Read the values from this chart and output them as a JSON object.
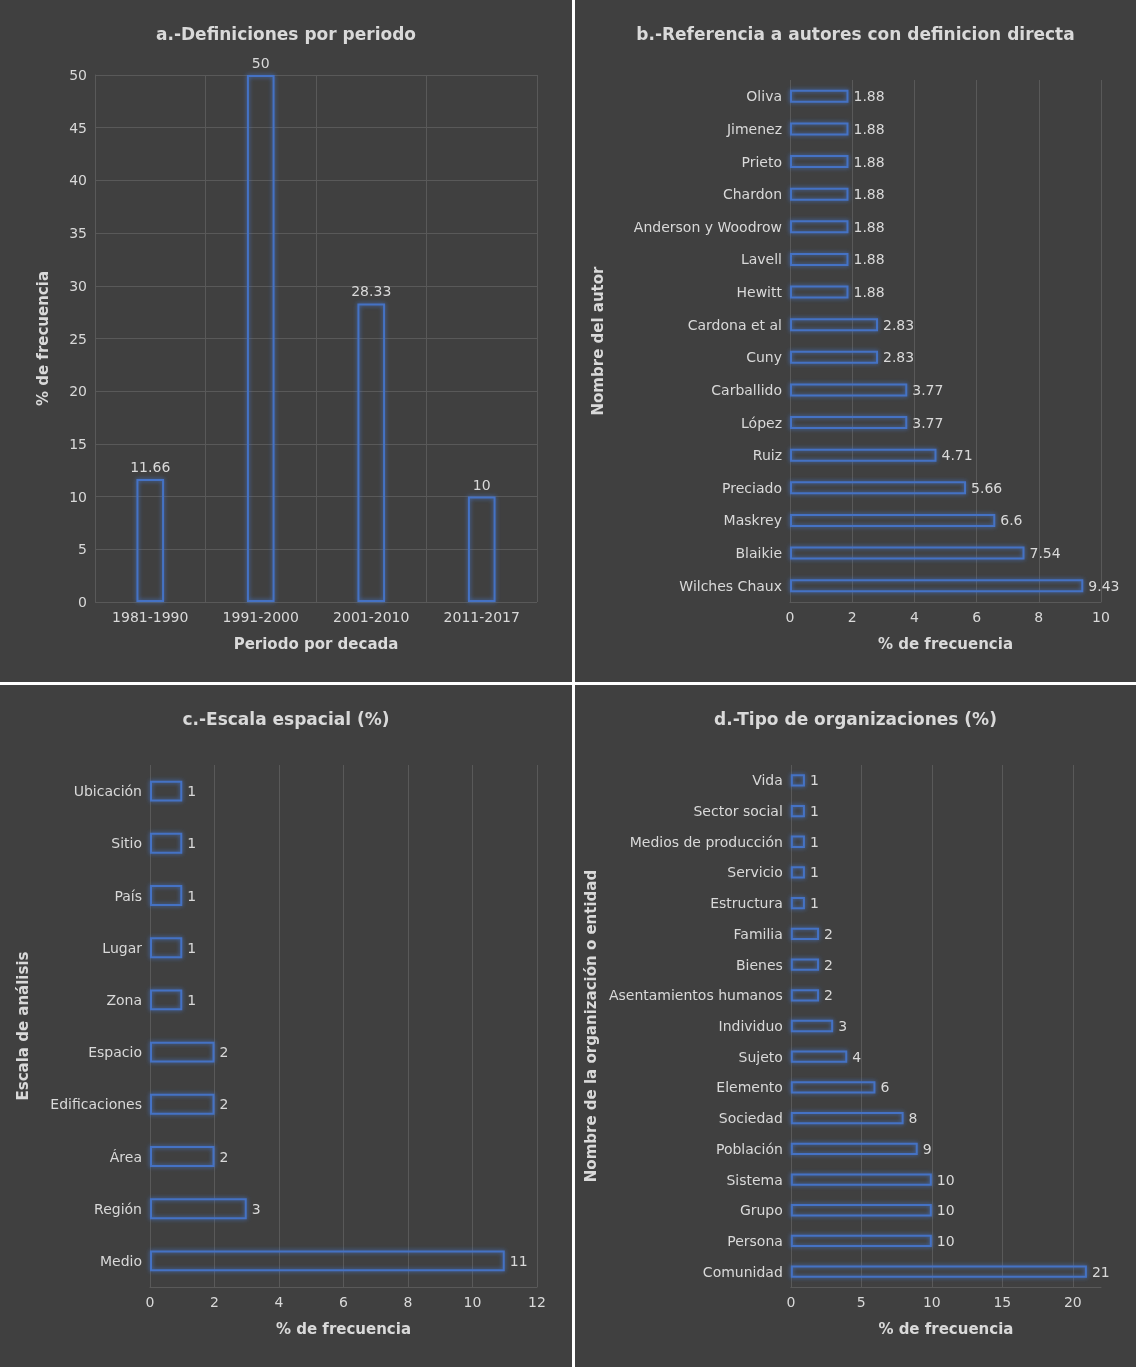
{
  "chart_data": [
    {
      "type": "bar",
      "title": "a.-Definiciones por periodo",
      "xlabel": "Periodo por decada",
      "ylabel": "% de frecuencia",
      "categories": [
        "1981-1990",
        "1991-2000",
        "2001-2010",
        "2011-2017"
      ],
      "values": [
        11.66,
        50,
        28.33,
        10
      ],
      "color": "#4472c4",
      "ylim": [
        0,
        50
      ],
      "yticks": [
        0,
        5,
        10,
        15,
        20,
        25,
        30,
        35,
        40,
        45,
        50
      ],
      "grid": true,
      "data_labels": true
    },
    {
      "type": "bar",
      "orientation": "horizontal",
      "title": "b.-Referencia a autores con definicion directa",
      "xlabel": "% de frecuencia",
      "ylabel": "Nombre del autor",
      "categories": [
        "Oliva",
        "Jimenez",
        "Prieto",
        "Chardon",
        "Anderson y Woodrow",
        "Lavell",
        "Hewitt",
        "Cardona et al",
        "Cuny",
        "Carballido",
        "López",
        "Ruiz",
        "Preciado",
        "Maskrey",
        "Blaikie",
        "Wilches Chaux"
      ],
      "values": [
        1.88,
        1.88,
        1.88,
        1.88,
        1.88,
        1.88,
        1.88,
        2.83,
        2.83,
        3.77,
        3.77,
        4.71,
        5.66,
        6.6,
        7.54,
        9.43
      ],
      "color": "#4472c4",
      "xlim": [
        0,
        10
      ],
      "xticks": [
        0,
        2,
        4,
        6,
        8,
        10
      ],
      "grid": "x",
      "data_labels": true
    },
    {
      "type": "bar",
      "orientation": "horizontal",
      "title": "c.-Escala espacial (%)",
      "xlabel": "% de frecuencia",
      "ylabel": "Escala de análisis",
      "categories": [
        "Ubicación",
        "Sitio",
        "País",
        "Lugar",
        "Zona",
        "Espacio",
        "Edificaciones",
        "Área",
        "Región",
        "Medio"
      ],
      "values": [
        1,
        1,
        1,
        1,
        1,
        2,
        2,
        2,
        3,
        11
      ],
      "color": "#4472c4",
      "xlim": [
        0,
        12
      ],
      "xticks": [
        0,
        2,
        4,
        6,
        8,
        10,
        12
      ],
      "grid": "x",
      "data_labels": true
    },
    {
      "type": "bar",
      "orientation": "horizontal",
      "title": "d.-Tipo de organizaciones (%)",
      "xlabel": "% de frecuencia",
      "ylabel": "Nombre de la organización o entidad",
      "categories": [
        "Vida",
        "Sector social",
        "Medios de producción",
        "Servicio",
        "Estructura",
        "Familia",
        "Bienes",
        "Asentamientos humanos",
        "Individuo",
        "Sujeto",
        "Elemento",
        "Sociedad",
        "Población",
        "Sistema",
        "Grupo",
        "Persona",
        "Comunidad"
      ],
      "values": [
        1,
        1,
        1,
        1,
        1,
        2,
        2,
        2,
        3,
        4,
        6,
        8,
        9,
        10,
        10,
        10,
        21
      ],
      "color": "#4472c4",
      "xlim": [
        0,
        22
      ],
      "xticks": [
        0,
        5,
        10,
        15,
        20
      ],
      "grid": "x",
      "data_labels": true
    }
  ]
}
